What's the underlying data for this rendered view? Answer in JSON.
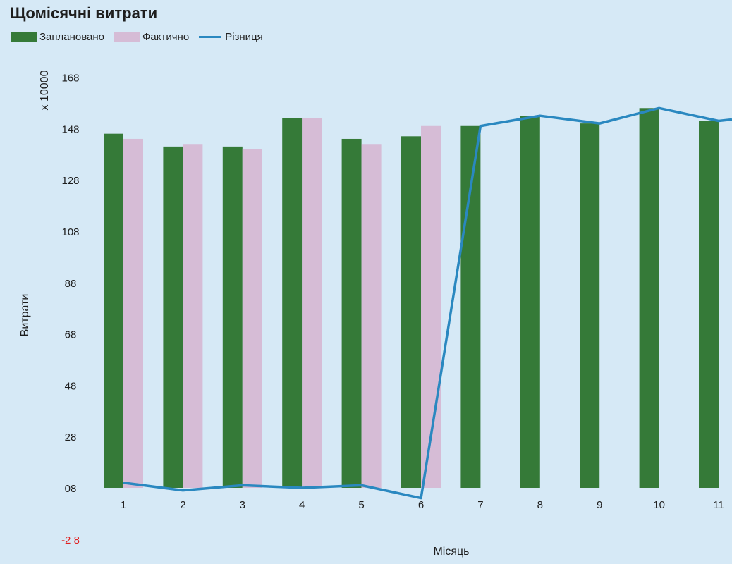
{
  "chart_data": {
    "type": "bar",
    "title": "Щомісячні витрати",
    "xlabel": "Місяць",
    "ylabel": "Витрати",
    "y_multiplier": "x 10000",
    "categories": [
      "1",
      "2",
      "3",
      "4",
      "5",
      "6",
      "7",
      "8",
      "9",
      "10",
      "11"
    ],
    "ylim": [
      -2,
      16
    ],
    "y_ticks": [
      {
        "value": 16,
        "label": "168"
      },
      {
        "value": 14,
        "label": "148"
      },
      {
        "value": 12,
        "label": "128"
      },
      {
        "value": 10,
        "label": "108"
      },
      {
        "value": 8,
        "label": "88"
      },
      {
        "value": 6,
        "label": "68"
      },
      {
        "value": 4,
        "label": "48"
      },
      {
        "value": 2,
        "label": "28"
      },
      {
        "value": 0,
        "label": "08"
      },
      {
        "value": -2,
        "label": "-2 8"
      }
    ],
    "legend_position": "top-left",
    "grid": false,
    "series": [
      {
        "name": "Заплановано",
        "type": "bar",
        "color": "#357a38",
        "values": [
          13.8,
          13.3,
          13.3,
          14.4,
          13.6,
          13.7,
          14.1,
          14.5,
          14.2,
          14.8,
          14.3
        ]
      },
      {
        "name": "Фактично",
        "type": "bar",
        "color": "#d6bcd6",
        "values": [
          13.6,
          13.4,
          13.2,
          14.4,
          13.4,
          14.1,
          null,
          null,
          null,
          null,
          null
        ]
      },
      {
        "name": "Різниця",
        "type": "line",
        "color": "#2a88c0",
        "values": [
          0.2,
          -0.1,
          0.1,
          0.0,
          0.1,
          -0.4,
          14.1,
          14.5,
          14.2,
          14.8,
          14.3
        ]
      }
    ]
  }
}
